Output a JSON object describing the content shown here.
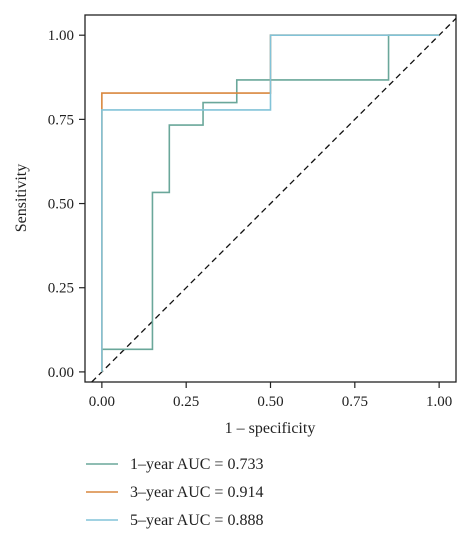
{
  "chart_data": {
    "type": "line",
    "title": "",
    "xlabel": "1 – specificity",
    "ylabel": "Sensitivity",
    "xlim": [
      -0.05,
      1.05
    ],
    "ylim": [
      -0.03,
      1.06
    ],
    "x_ticks": [
      "0.00",
      "0.25",
      "0.50",
      "0.75",
      "1.00"
    ],
    "y_ticks": [
      "0.00",
      "0.25",
      "0.50",
      "0.75",
      "1.00"
    ],
    "grid": false,
    "legend_position": "bottom",
    "reference_line": {
      "style": "dashed",
      "from": [
        0,
        0
      ],
      "to": [
        1,
        1
      ]
    },
    "series": [
      {
        "name": "1–year AUC = 0.733",
        "color": "#6aa79a",
        "x": [
          0.0,
          0.0,
          0.15,
          0.15,
          0.2,
          0.2,
          0.3,
          0.3,
          0.4,
          0.4,
          0.85,
          0.85,
          1.0
        ],
        "y": [
          0.0,
          0.067,
          0.067,
          0.533,
          0.533,
          0.733,
          0.733,
          0.8,
          0.8,
          0.867,
          0.867,
          1.0,
          1.0
        ]
      },
      {
        "name": "3–year AUC = 0.914",
        "color": "#d9873e",
        "x": [
          0.0,
          0.0,
          0.5,
          0.5,
          1.0
        ],
        "y": [
          0.0,
          0.828,
          0.828,
          1.0,
          1.0
        ]
      },
      {
        "name": "5–year AUC = 0.888",
        "color": "#82c3d8",
        "x": [
          0.0,
          0.0,
          0.5,
          0.5,
          1.0
        ],
        "y": [
          0.0,
          0.778,
          0.778,
          1.0,
          1.0
        ]
      }
    ]
  }
}
